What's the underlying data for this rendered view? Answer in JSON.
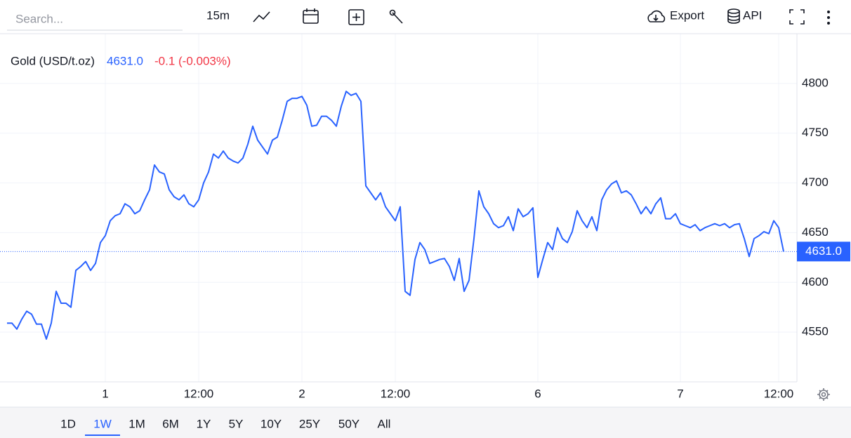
{
  "toolbar": {
    "search_placeholder": "Search...",
    "interval": "15m",
    "export": "Export",
    "api": "API"
  },
  "ranges": {
    "items": [
      "1D",
      "1W",
      "1M",
      "6M",
      "1Y",
      "5Y",
      "10Y",
      "25Y",
      "50Y",
      "All"
    ],
    "active": 1
  },
  "chart_data": {
    "type": "line",
    "change_label": "-0.1 (-0.003%)",
    "last_price": {
      "value": 4631,
      "label": "4631.0"
    },
    "categories": [
      null,
      null,
      null,
      null,
      null,
      null,
      null,
      null,
      null,
      null,
      null,
      null,
      null,
      null,
      null,
      null,
      null,
      null,
      null,
      null,
      "1",
      null,
      null,
      null,
      null,
      null,
      null,
      null,
      null,
      null,
      null,
      null,
      null,
      null,
      null,
      null,
      null,
      null,
      null,
      "12:00",
      null,
      null,
      null,
      null,
      null,
      null,
      null,
      null,
      null,
      null,
      null,
      null,
      null,
      null,
      null,
      null,
      null,
      null,
      null,
      null,
      "2",
      null,
      null,
      null,
      null,
      null,
      null,
      null,
      null,
      null,
      null,
      null,
      null,
      null,
      null,
      null,
      null,
      null,
      null,
      "12:00",
      null,
      null,
      null,
      null,
      null,
      null,
      null,
      null,
      null,
      null,
      null,
      null,
      null,
      null,
      null,
      null,
      null,
      null,
      null,
      null,
      null,
      null,
      null,
      null,
      null,
      null,
      null,
      null,
      "6",
      null,
      null,
      null,
      null,
      null,
      null,
      null,
      null,
      null,
      null,
      null,
      null,
      null,
      null,
      null,
      null,
      null,
      null,
      null,
      null,
      null,
      null,
      null,
      null,
      null,
      null,
      null,
      null,
      "7",
      null,
      null,
      null,
      null,
      null,
      null,
      null,
      null,
      null,
      null,
      null,
      null,
      null,
      null,
      null,
      null,
      null,
      null,
      null,
      "12:00",
      null
    ],
    "series": [
      {
        "name": "Gold (USD/t.oz)",
        "color": "#2962ff",
        "values": [
          4559,
          4559,
          4553,
          4563,
          4571,
          4568,
          4558,
          4558,
          4543,
          4559,
          4591,
          4579,
          4579,
          4575,
          4612,
          4616,
          4621,
          4612,
          4619,
          4640,
          4647,
          4662,
          4667,
          4669,
          4679,
          4676,
          4669,
          4672,
          4683,
          4693,
          4718,
          4711,
          4709,
          4693,
          4686,
          4683,
          4688,
          4679,
          4676,
          4683,
          4700,
          4711,
          4729,
          4725,
          4732,
          4725,
          4722,
          4720,
          4725,
          4739,
          4757,
          4743,
          4736,
          4729,
          4743,
          4746,
          4763,
          4782,
          4785,
          4785,
          4787,
          4778,
          4757,
          4758,
          4767,
          4767,
          4763,
          4757,
          4777,
          4792,
          4788,
          4790,
          4782,
          4697,
          4690,
          4683,
          4690,
          4676,
          4669,
          4662,
          4676,
          4591,
          4587,
          4623,
          4640,
          4633,
          4619,
          4621,
          4623,
          4624,
          4616,
          4602,
          4624,
          4591,
          4602,
          4644,
          4692,
          4676,
          4669,
          4659,
          4655,
          4657,
          4666,
          4652,
          4674,
          4666,
          4669,
          4675,
          4605,
          4623,
          4640,
          4633,
          4655,
          4644,
          4640,
          4651,
          4672,
          4662,
          4655,
          4666,
          4652,
          4683,
          4693,
          4699,
          4702,
          4690,
          4692,
          4688,
          4679,
          4669,
          4676,
          4669,
          4679,
          4685,
          4664,
          4664,
          4669,
          4659,
          4657,
          4655,
          4658,
          4652,
          4655,
          4657,
          4659,
          4657,
          4659,
          4655,
          4658,
          4659,
          4644,
          4626,
          4644,
          4647,
          4651,
          4649,
          4662,
          4655,
          4631
        ]
      }
    ],
    "ylim": [
      4500,
      4850
    ],
    "yticks": [
      4550,
      4600,
      4650,
      4700,
      4750,
      4800
    ],
    "grid": true
  }
}
